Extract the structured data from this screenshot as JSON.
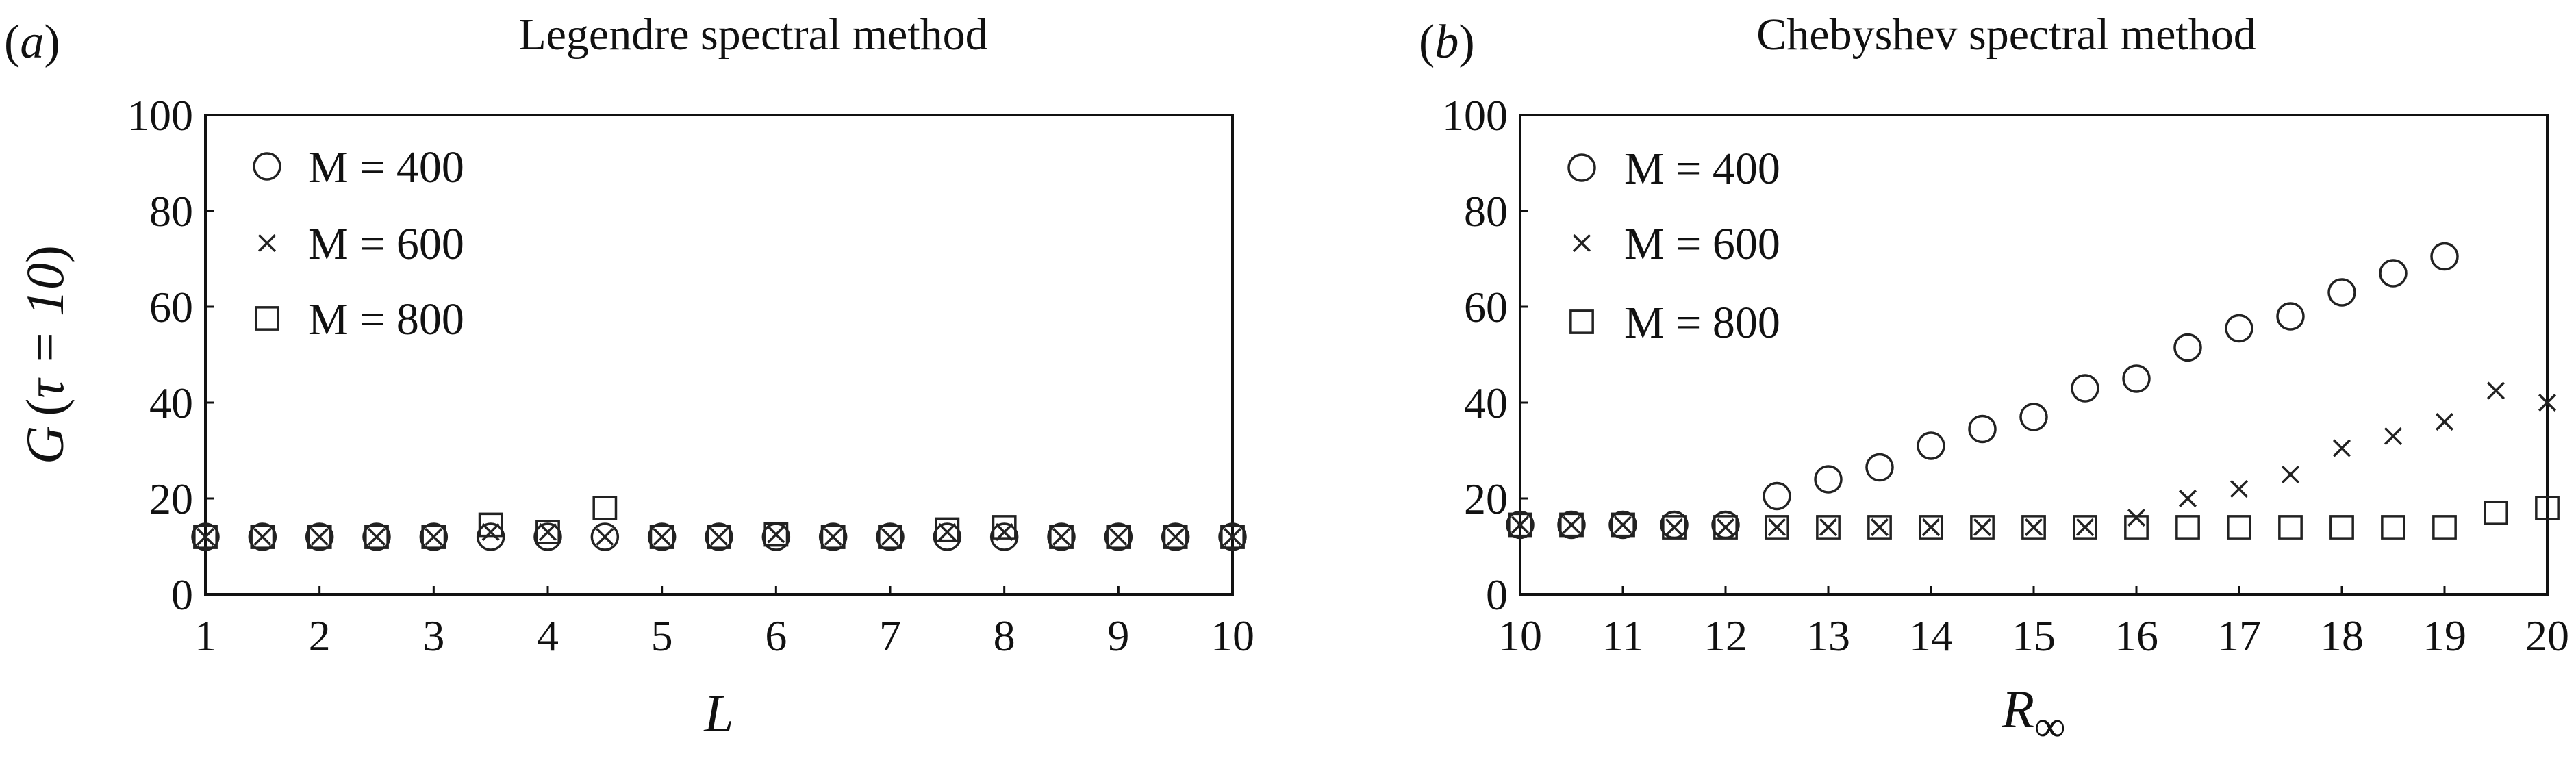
{
  "panels": [
    {
      "panel_label": "a",
      "chart_data": {
        "type": "scatter",
        "title": "Legendre spectral method",
        "xlabel": "L",
        "ylabel_var": "G",
        "ylabel_arg": "τ = 10",
        "xlim": [
          1,
          10
        ],
        "ylim": [
          0,
          100
        ],
        "xticks": [
          1,
          2,
          3,
          4,
          5,
          6,
          7,
          8,
          9,
          10
        ],
        "yticks": [
          0,
          20,
          40,
          60,
          80,
          100
        ],
        "grid": false,
        "legend_position": "top-left",
        "series": [
          {
            "name": "M = 400",
            "marker": "circle",
            "x": [
              1,
              1.5,
              2,
              2.5,
              3,
              3.5,
              4,
              4.5,
              5,
              5.5,
              6,
              6.5,
              7,
              7.5,
              8,
              8.5,
              9,
              9.5,
              10
            ],
            "y": [
              12,
              12,
              12,
              12,
              12,
              12,
              12,
              12,
              12,
              12,
              12,
              12,
              12,
              12,
              12,
              12,
              12,
              12,
              12
            ]
          },
          {
            "name": "M = 600",
            "marker": "x",
            "x": [
              1,
              1.5,
              2,
              2.5,
              3,
              3.5,
              4,
              4.5,
              5,
              5.5,
              6,
              6.5,
              7,
              7.5,
              8,
              8.5,
              9,
              9.5,
              10
            ],
            "y": [
              12,
              12,
              12,
              12,
              12,
              13,
              13,
              12,
              12,
              12,
              12.5,
              12,
              12,
              13,
              13,
              12,
              12,
              12,
              12
            ]
          },
          {
            "name": "M = 800",
            "marker": "square",
            "x": [
              1,
              1.5,
              2,
              2.5,
              3,
              3.5,
              4,
              4.5,
              5,
              5.5,
              6,
              6.5,
              7,
              7.5,
              8,
              8.5,
              9,
              9.5,
              10
            ],
            "y": [
              12,
              12,
              12,
              12,
              12,
              14.5,
              13,
              18,
              12,
              12,
              12.5,
              12,
              12,
              13.5,
              14,
              12,
              12,
              12,
              12
            ]
          }
        ]
      }
    },
    {
      "panel_label": "b",
      "chart_data": {
        "type": "scatter",
        "title": "Chebyshev spectral method",
        "xlabel_main": "R",
        "xlabel_sub": "∞",
        "xlim": [
          10,
          20
        ],
        "ylim": [
          0,
          100
        ],
        "xticks": [
          10,
          11,
          12,
          13,
          14,
          15,
          16,
          17,
          18,
          19,
          20
        ],
        "yticks": [
          0,
          20,
          40,
          60,
          80,
          100
        ],
        "grid": false,
        "legend_position": "top-left",
        "series": [
          {
            "name": "M = 400",
            "marker": "circle",
            "x": [
              10,
              10.5,
              11,
              11.5,
              12,
              12.5,
              13,
              13.5,
              14,
              14.5,
              15,
              15.5,
              16,
              16.5,
              17,
              17.5,
              18,
              18.5,
              19
            ],
            "y": [
              14.5,
              14.5,
              14.5,
              14.5,
              14.5,
              20.5,
              24,
              26.5,
              31,
              34.5,
              37,
              43,
              45,
              51.5,
              55.5,
              58,
              63,
              67,
              70.5
            ]
          },
          {
            "name": "M = 600",
            "marker": "x",
            "x": [
              10,
              10.5,
              11,
              11.5,
              12,
              12.5,
              13,
              13.5,
              14,
              14.5,
              15,
              15.5,
              16,
              16.5,
              17,
              17.5,
              18,
              18.5,
              19,
              19.5,
              20
            ],
            "y": [
              14.5,
              14.5,
              14.5,
              14,
              14,
              14,
              14,
              14,
              14,
              14,
              14,
              14,
              16,
              20,
              22,
              25,
              30.5,
              33,
              36,
              42.5,
              40
            ]
          },
          {
            "name": "M = 800",
            "marker": "square",
            "x": [
              10,
              10.5,
              11,
              11.5,
              12,
              12.5,
              13,
              13.5,
              14,
              14.5,
              15,
              15.5,
              16,
              16.5,
              17,
              17.5,
              18,
              18.5,
              19,
              19.5,
              20
            ],
            "y": [
              14.5,
              14.5,
              14.5,
              14,
              14,
              14,
              14,
              14,
              14,
              14,
              14,
              14,
              14,
              14,
              14,
              14,
              14,
              14,
              14,
              17,
              18
            ]
          }
        ]
      }
    }
  ]
}
